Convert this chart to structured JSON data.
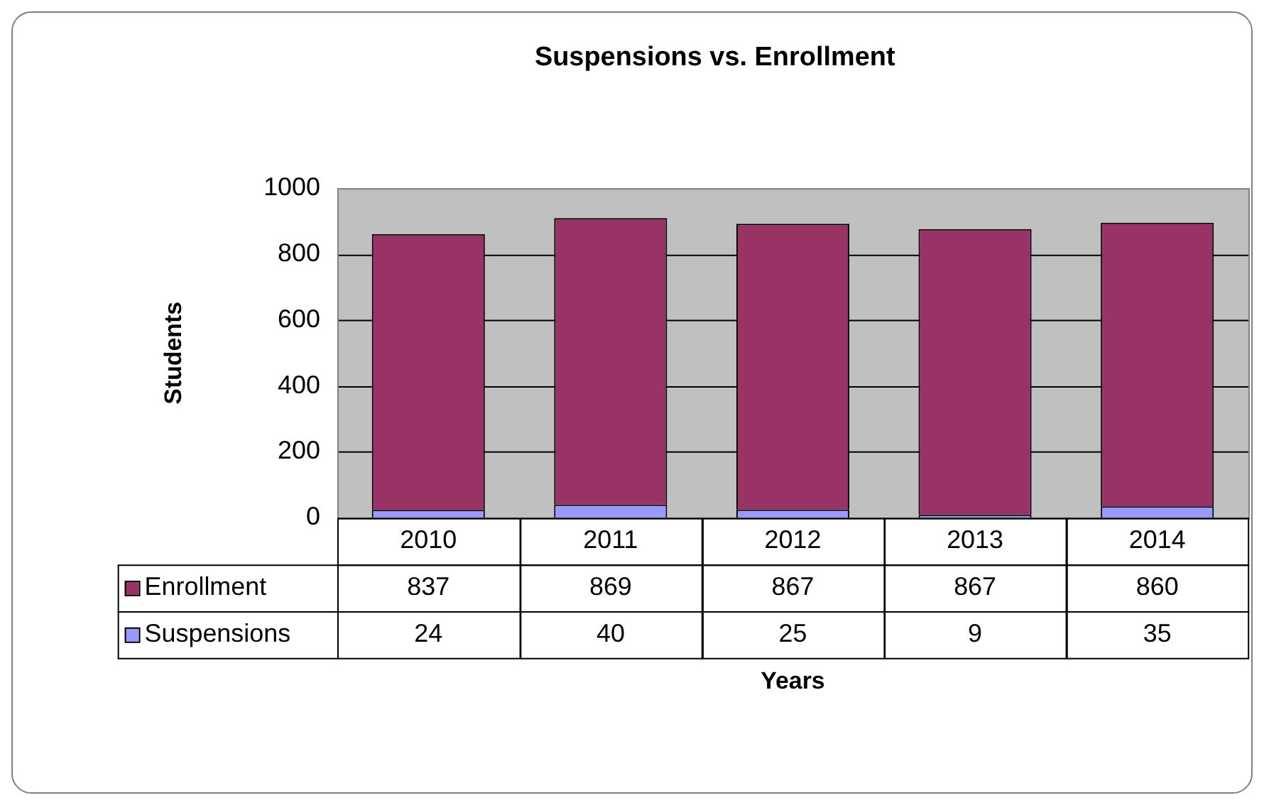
{
  "chart_data": {
    "type": "bar",
    "title": "Suspensions vs. Enrollment",
    "xlabel": "Years",
    "ylabel": "Students",
    "categories": [
      "2010",
      "2011",
      "2012",
      "2013",
      "2014"
    ],
    "series": [
      {
        "name": "Suspensions",
        "color": "#9999ff",
        "values": [
          24,
          40,
          25,
          9,
          35
        ]
      },
      {
        "name": "Enrollment",
        "color": "#993366",
        "values": [
          837,
          869,
          867,
          867,
          860
        ]
      }
    ],
    "stacked": true,
    "legend": "bottom left",
    "ylim": [
      0,
      1000
    ],
    "yticks": [
      0,
      200,
      400,
      600,
      800,
      1000
    ],
    "grid": true,
    "data_labels": true
  }
}
